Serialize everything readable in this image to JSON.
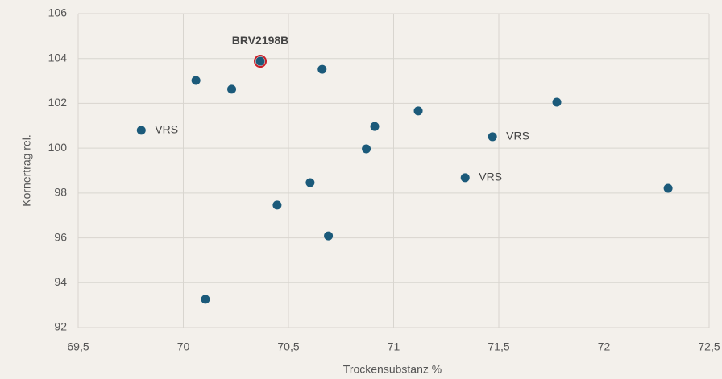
{
  "chart_data": {
    "type": "scatter",
    "x_label": "Trockensubstanz %",
    "y_label": "Kornertrag rel.",
    "x": [
      69.8,
      70.06,
      70.105,
      70.23,
      70.366,
      70.446,
      70.603,
      70.66,
      70.69,
      70.87,
      70.91,
      71.117,
      71.34,
      71.47,
      71.776,
      72.305
    ],
    "values": [
      100.8,
      103.02,
      93.26,
      102.63,
      103.88,
      97.46,
      98.46,
      103.52,
      96.09,
      99.97,
      100.97,
      101.66,
      98.68,
      100.51,
      102.05,
      98.21
    ],
    "point_labels": [
      "VRS",
      null,
      null,
      null,
      "BRV2198B",
      null,
      null,
      null,
      null,
      null,
      null,
      null,
      "VRS",
      "VRS",
      null,
      null
    ],
    "color": "#1b5a7a",
    "highlight_index": 4,
    "highlight_color": "#c8202a",
    "xlim": [
      69.5,
      72.5
    ],
    "xticks": [
      {
        "value": 69.5,
        "label": "69,5"
      },
      70,
      {
        "value": 70.5,
        "label": "70,5"
      },
      71,
      {
        "value": 71.5,
        "label": "71,5"
      },
      72,
      {
        "value": 72.5,
        "label": "72,5"
      }
    ],
    "ylim": [
      92,
      106
    ],
    "yticks": [
      92,
      94,
      96,
      98,
      100,
      102,
      104,
      106
    ],
    "grid": true
  }
}
